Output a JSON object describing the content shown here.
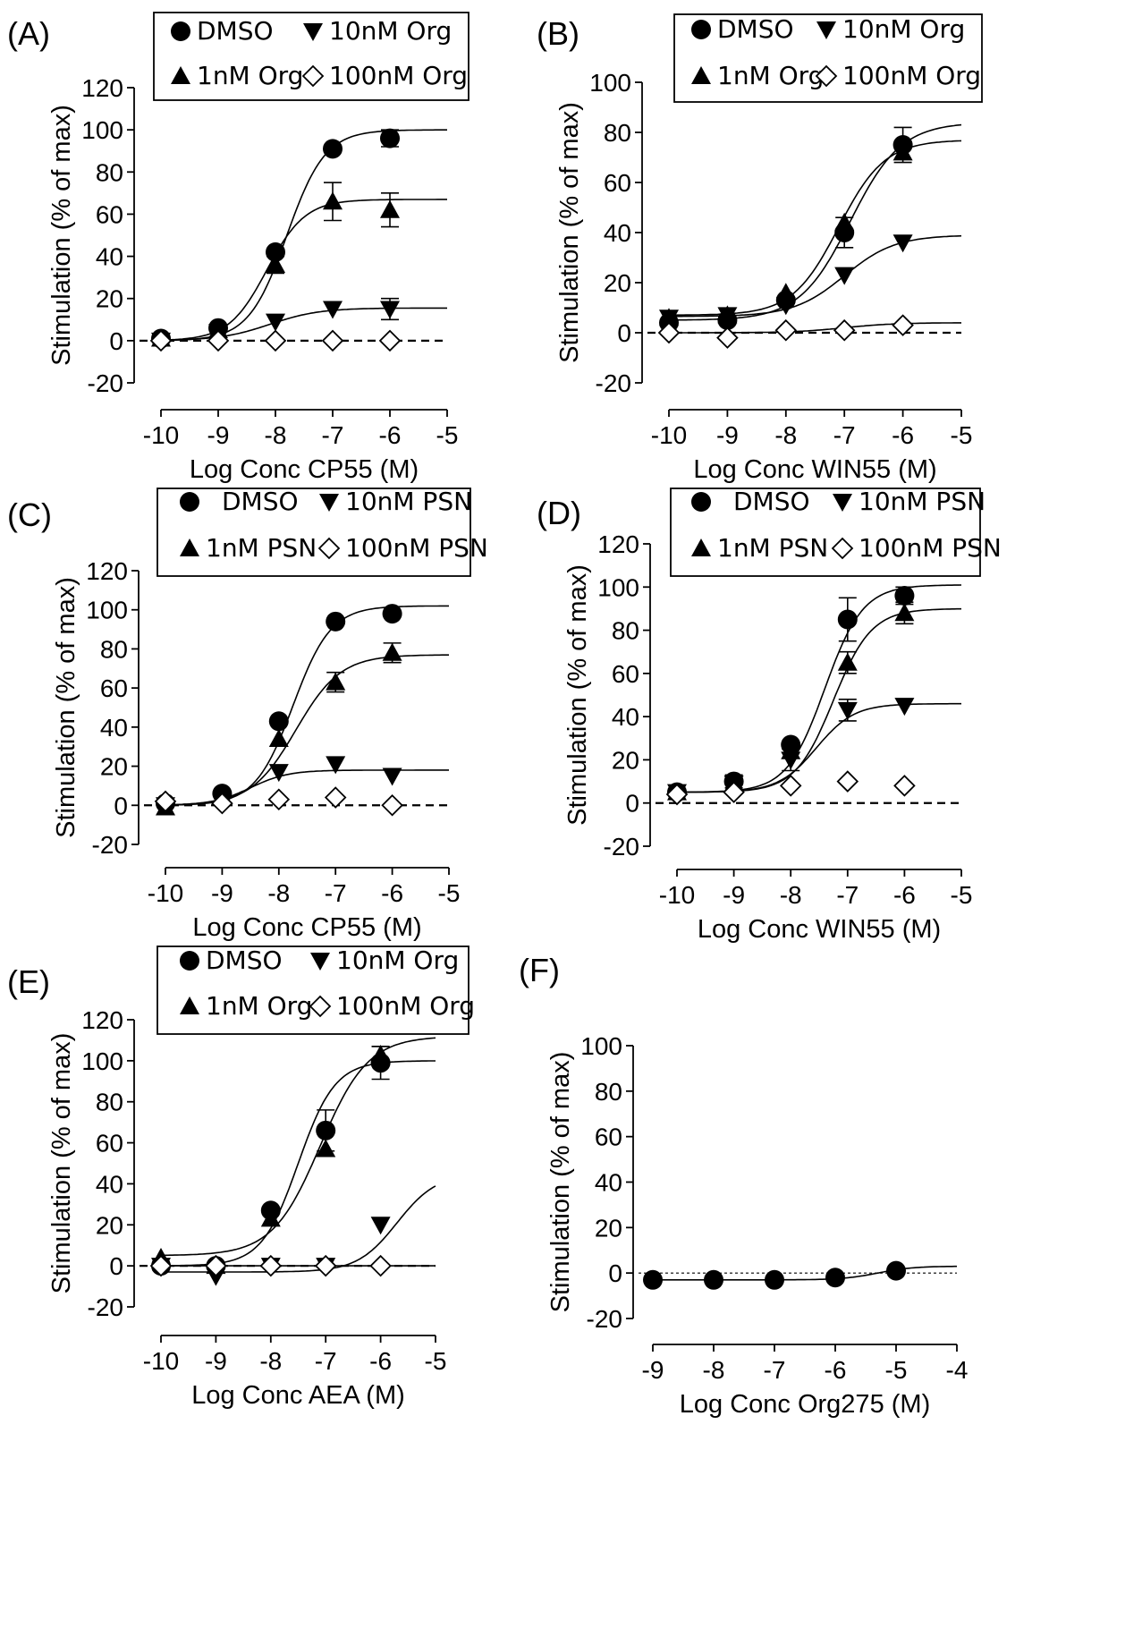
{
  "chart_data": [
    {
      "panel": "(A)",
      "type": "scatter",
      "xlabel": "Log Conc CP55 (M)",
      "ylabel": "Stimulation (% of max)",
      "xlim": [
        -10,
        -5
      ],
      "ylim": [
        -20,
        120
      ],
      "xticks": [
        -10,
        -9,
        -8,
        -7,
        -6,
        -5
      ],
      "yticks": [
        -20,
        0,
        20,
        40,
        60,
        80,
        100,
        120
      ],
      "zero_line": "dashed",
      "legend": [
        "DMSO",
        "10nM Org",
        "1nM Org",
        "100nM Org"
      ],
      "legend_position": "top",
      "series": [
        {
          "name": "DMSO",
          "marker": "circle",
          "x": [
            -10,
            -9,
            -8,
            -7,
            -6
          ],
          "y": [
            1,
            6,
            42,
            91,
            96
          ],
          "err": [
            0,
            0,
            0,
            0,
            4
          ],
          "fit": {
            "bottom": 0,
            "top": 100,
            "logec50": -7.8,
            "hill": 1.3
          }
        },
        {
          "name": "10nM Org",
          "marker": "triangle-down",
          "x": [
            -10,
            -9,
            -8,
            -7,
            -6
          ],
          "y": [
            0,
            4,
            9,
            15,
            15
          ],
          "err": [
            0,
            0,
            0,
            0,
            5
          ],
          "fit": {
            "bottom": 0,
            "top": 15.5,
            "logec50": -8.1,
            "hill": 1
          }
        },
        {
          "name": "1nM Org",
          "marker": "triangle-up",
          "x": [
            -10,
            -9,
            -8,
            -7,
            -6
          ],
          "y": [
            1,
            5,
            36,
            66,
            62
          ],
          "err": [
            0,
            0,
            4,
            9,
            8
          ],
          "fit": {
            "bottom": 0,
            "top": 67,
            "logec50": -8.15,
            "hill": 1.3
          }
        },
        {
          "name": "100nM Org",
          "marker": "diamond-open",
          "x": [
            -10,
            -9,
            -8,
            -7,
            -6
          ],
          "y": [
            0,
            0,
            0,
            0,
            0
          ],
          "err": [
            0,
            0,
            0,
            0,
            0
          ]
        }
      ]
    },
    {
      "panel": "(B)",
      "type": "scatter",
      "xlabel": "Log Conc WIN55 (M)",
      "ylabel": "Stimulation (% of max)",
      "xlim": [
        -10,
        -5
      ],
      "ylim": [
        -20,
        100
      ],
      "xticks": [
        -10,
        -9,
        -8,
        -7,
        -6,
        -5
      ],
      "yticks": [
        -20,
        0,
        20,
        40,
        60,
        80,
        100
      ],
      "zero_line": "dashed",
      "legend": [
        "DMSO",
        "10nM Org",
        "1nM Org",
        "100nM Org"
      ],
      "legend_position": "top",
      "series": [
        {
          "name": "DMSO",
          "marker": "circle",
          "x": [
            -10,
            -9,
            -8,
            -7,
            -6
          ],
          "y": [
            4,
            5,
            13,
            40,
            75
          ],
          "err": [
            0,
            0,
            0,
            6,
            7
          ],
          "fit": {
            "bottom": 5,
            "top": 84,
            "logec50": -6.9,
            "hill": 1
          }
        },
        {
          "name": "10nM Org",
          "marker": "triangle-down",
          "x": [
            -10,
            -9,
            -8,
            -7,
            -6
          ],
          "y": [
            6,
            7,
            11,
            23,
            36
          ],
          "err": [
            0,
            0,
            0,
            0,
            0
          ],
          "fit": {
            "bottom": 6.5,
            "top": 39,
            "logec50": -7.0,
            "hill": 1
          }
        },
        {
          "name": "1nM Org",
          "marker": "triangle-up",
          "x": [
            -10,
            -9,
            -8,
            -7,
            -6
          ],
          "y": [
            6,
            7,
            16,
            44,
            72
          ],
          "err": [
            0,
            0,
            0,
            0,
            0
          ],
          "fit": {
            "bottom": 7,
            "top": 77,
            "logec50": -7.1,
            "hill": 1.1
          }
        },
        {
          "name": "100nM Org",
          "marker": "diamond-open",
          "x": [
            -10,
            -9,
            -8,
            -7,
            -6
          ],
          "y": [
            0,
            -2,
            1,
            1,
            3
          ],
          "err": [
            0,
            0,
            0,
            0,
            0
          ],
          "fit": {
            "bottom": 0,
            "top": 4,
            "logec50": -7.0,
            "hill": 1
          }
        }
      ]
    },
    {
      "panel": "(C)",
      "type": "scatter",
      "xlabel": "Log Conc CP55 (M)",
      "ylabel": "Stimulation (% of max)",
      "xlim": [
        -10,
        -5
      ],
      "ylim": [
        -20,
        120
      ],
      "xticks": [
        -10,
        -9,
        -8,
        -7,
        -6,
        -5
      ],
      "yticks": [
        -20,
        0,
        20,
        40,
        60,
        80,
        100,
        120
      ],
      "zero_line": "dashed",
      "legend": [
        "DMSO",
        "10nM PSN",
        "1nM PSN",
        "100nM PSN"
      ],
      "legend_position": "top",
      "series": [
        {
          "name": "DMSO",
          "marker": "circle",
          "x": [
            -10,
            -9,
            -8,
            -7,
            -6
          ],
          "y": [
            1,
            6,
            43,
            94,
            98
          ],
          "err": [
            0,
            0,
            0,
            0,
            0
          ],
          "fit": {
            "bottom": 0,
            "top": 102,
            "logec50": -7.75,
            "hill": 1.3
          }
        },
        {
          "name": "10nM PSN",
          "marker": "triangle-down",
          "x": [
            -10,
            -9,
            -8,
            -7,
            -6
          ],
          "y": [
            0,
            3,
            17,
            21,
            15
          ],
          "err": [
            0,
            0,
            0,
            0,
            0
          ],
          "fit": {
            "bottom": 0,
            "top": 18,
            "logec50": -8.5,
            "hill": 1.3
          }
        },
        {
          "name": "1nM PSN",
          "marker": "triangle-up",
          "x": [
            -10,
            -9,
            -8,
            -7,
            -6
          ],
          "y": [
            -1,
            4,
            34,
            63,
            78
          ],
          "err": [
            0,
            0,
            0,
            5,
            5
          ],
          "fit": {
            "bottom": 0,
            "top": 77,
            "logec50": -7.7,
            "hill": 1.1
          }
        },
        {
          "name": "100nM PSN",
          "marker": "diamond-open",
          "x": [
            -10,
            -9,
            -8,
            -7,
            -6
          ],
          "y": [
            2,
            1,
            3,
            4,
            0
          ],
          "err": [
            0,
            0,
            0,
            0,
            0
          ]
        }
      ]
    },
    {
      "panel": "(D)",
      "type": "scatter",
      "xlabel": "Log Conc WIN55 (M)",
      "ylabel": "Stimulation (% of max)",
      "xlim": [
        -10,
        -5
      ],
      "ylim": [
        -20,
        120
      ],
      "xticks": [
        -10,
        -9,
        -8,
        -7,
        -6,
        -5
      ],
      "yticks": [
        -20,
        0,
        20,
        40,
        60,
        80,
        100,
        120
      ],
      "zero_line": "dashed",
      "legend": [
        "DMSO",
        "10nM PSN",
        "1nM PSN",
        "100nM PSN"
      ],
      "legend_position": "top",
      "series": [
        {
          "name": "DMSO",
          "marker": "circle",
          "x": [
            -10,
            -9,
            -8,
            -7,
            -6
          ],
          "y": [
            5,
            10,
            27,
            85,
            96
          ],
          "err": [
            0,
            3,
            0,
            10,
            4
          ],
          "fit": {
            "bottom": 5,
            "top": 101,
            "logec50": -7.4,
            "hill": 1.3
          }
        },
        {
          "name": "10nM PSN",
          "marker": "triangle-down",
          "x": [
            -10,
            -9,
            -8,
            -7,
            -6
          ],
          "y": [
            5,
            9,
            20,
            43,
            45
          ],
          "err": [
            0,
            0,
            5,
            5,
            0
          ],
          "fit": {
            "bottom": 5,
            "top": 46,
            "logec50": -7.55,
            "hill": 1.3
          }
        },
        {
          "name": "1nM PSN",
          "marker": "triangle-up",
          "x": [
            -10,
            -9,
            -8,
            -7,
            -6
          ],
          "y": [
            5,
            9,
            24,
            65,
            88
          ],
          "err": [
            0,
            0,
            0,
            5,
            5
          ],
          "fit": {
            "bottom": 5,
            "top": 90,
            "logec50": -7.25,
            "hill": 1.3
          }
        },
        {
          "name": "100nM PSN",
          "marker": "diamond-open",
          "x": [
            -10,
            -9,
            -8,
            -7,
            -6
          ],
          "y": [
            4,
            5,
            8,
            10,
            8
          ],
          "err": [
            0,
            0,
            0,
            0,
            0
          ]
        }
      ]
    },
    {
      "panel": "(E)",
      "type": "scatter",
      "xlabel": "Log Conc AEA (M)",
      "ylabel": "Stimulation (% of max)",
      "xlim": [
        -10,
        -5
      ],
      "ylim": [
        -20,
        120
      ],
      "xticks": [
        -10,
        -9,
        -8,
        -7,
        -6,
        -5
      ],
      "yticks": [
        -20,
        0,
        20,
        40,
        60,
        80,
        100,
        120
      ],
      "zero_line": "dashed",
      "legend": [
        "DMSO",
        "10nM Org",
        "1nM Org",
        "100nM Org"
      ],
      "legend_position": "top",
      "series": [
        {
          "name": "DMSO",
          "marker": "circle",
          "x": [
            -10,
            -9,
            -8,
            -7,
            -6
          ],
          "y": [
            0,
            0,
            27,
            66,
            99
          ],
          "err": [
            2,
            0,
            0,
            10,
            8
          ],
          "fit": {
            "bottom": 0,
            "top": 100,
            "logec50": -7.5,
            "hill": 1.3
          }
        },
        {
          "name": "10nM Org",
          "marker": "triangle-down",
          "x": [
            -10,
            -9,
            -8,
            -7,
            -6
          ],
          "y": [
            0,
            -5,
            0,
            0,
            20
          ],
          "err": [
            0,
            0,
            0,
            0,
            0
          ],
          "fit": {
            "bottom": -3,
            "top": 45,
            "logec50": -5.7,
            "hill": 1.2
          }
        },
        {
          "name": "1nM Org",
          "marker": "triangle-up",
          "x": [
            -10,
            -9,
            -8,
            -7,
            -6
          ],
          "y": [
            4,
            0,
            23,
            57,
            103
          ],
          "err": [
            0,
            0,
            0,
            0,
            4
          ],
          "fit": {
            "bottom": 5,
            "top": 112,
            "logec50": -7.1,
            "hill": 1.0
          }
        },
        {
          "name": "100nM Org",
          "marker": "diamond-open",
          "x": [
            -10,
            -9,
            -8,
            -7,
            -6
          ],
          "y": [
            0,
            0,
            0,
            0,
            0
          ],
          "err": [
            0,
            0,
            0,
            0,
            0
          ],
          "fit": {
            "bottom": 0,
            "top": 0,
            "logec50": -7.0,
            "hill": 1
          }
        }
      ]
    },
    {
      "panel": "(F)",
      "type": "scatter",
      "xlabel": "Log Conc Org275 (M)",
      "ylabel": "Stimulation (% of max)",
      "xlim": [
        -9,
        -4
      ],
      "ylim": [
        -20,
        100
      ],
      "xticks": [
        -9,
        -8,
        -7,
        -6,
        -5,
        -4
      ],
      "yticks": [
        -20,
        0,
        20,
        40,
        60,
        80,
        100
      ],
      "zero_line": "dotted",
      "legend": [],
      "series": [
        {
          "marker": "circle",
          "x": [
            -9,
            -8,
            -7,
            -6,
            -5
          ],
          "y": [
            -3,
            -3,
            -3,
            -2,
            1
          ],
          "err": [
            0,
            0,
            0,
            0,
            0
          ],
          "fit": {
            "bottom": -3,
            "top": 3,
            "logec50": -5.3,
            "hill": 1.5
          }
        }
      ]
    }
  ]
}
